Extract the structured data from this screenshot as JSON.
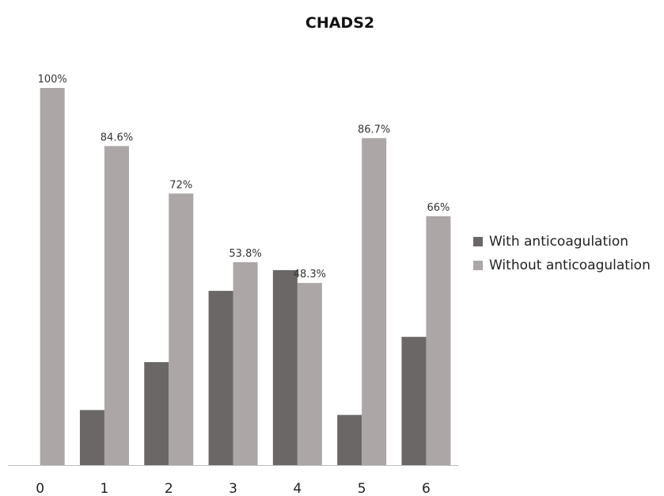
{
  "chart_data": {
    "type": "bar",
    "title": "CHADS2",
    "categories": [
      "0",
      "1",
      "2",
      "3",
      "4",
      "5",
      "6"
    ],
    "series": [
      {
        "name": "With anticoagulation",
        "color": "#6b6767",
        "values": [
          0,
          14.6,
          27.3,
          46.2,
          51.7,
          13.3,
          34.0
        ],
        "labels": [
          "",
          "",
          "",
          "",
          "",
          "",
          ""
        ]
      },
      {
        "name": "Without anticoagulation",
        "color": "#aca7a6",
        "values": [
          100,
          84.6,
          72,
          53.8,
          48.3,
          86.7,
          66
        ],
        "labels": [
          "100%",
          "84.6%",
          "72%",
          "53.8%",
          "48.3%",
          "86.7%",
          "66%"
        ]
      }
    ],
    "ylim": [
      0,
      100
    ],
    "xlabel": "",
    "ylabel": "",
    "grid": false,
    "legend_position": "right"
  }
}
